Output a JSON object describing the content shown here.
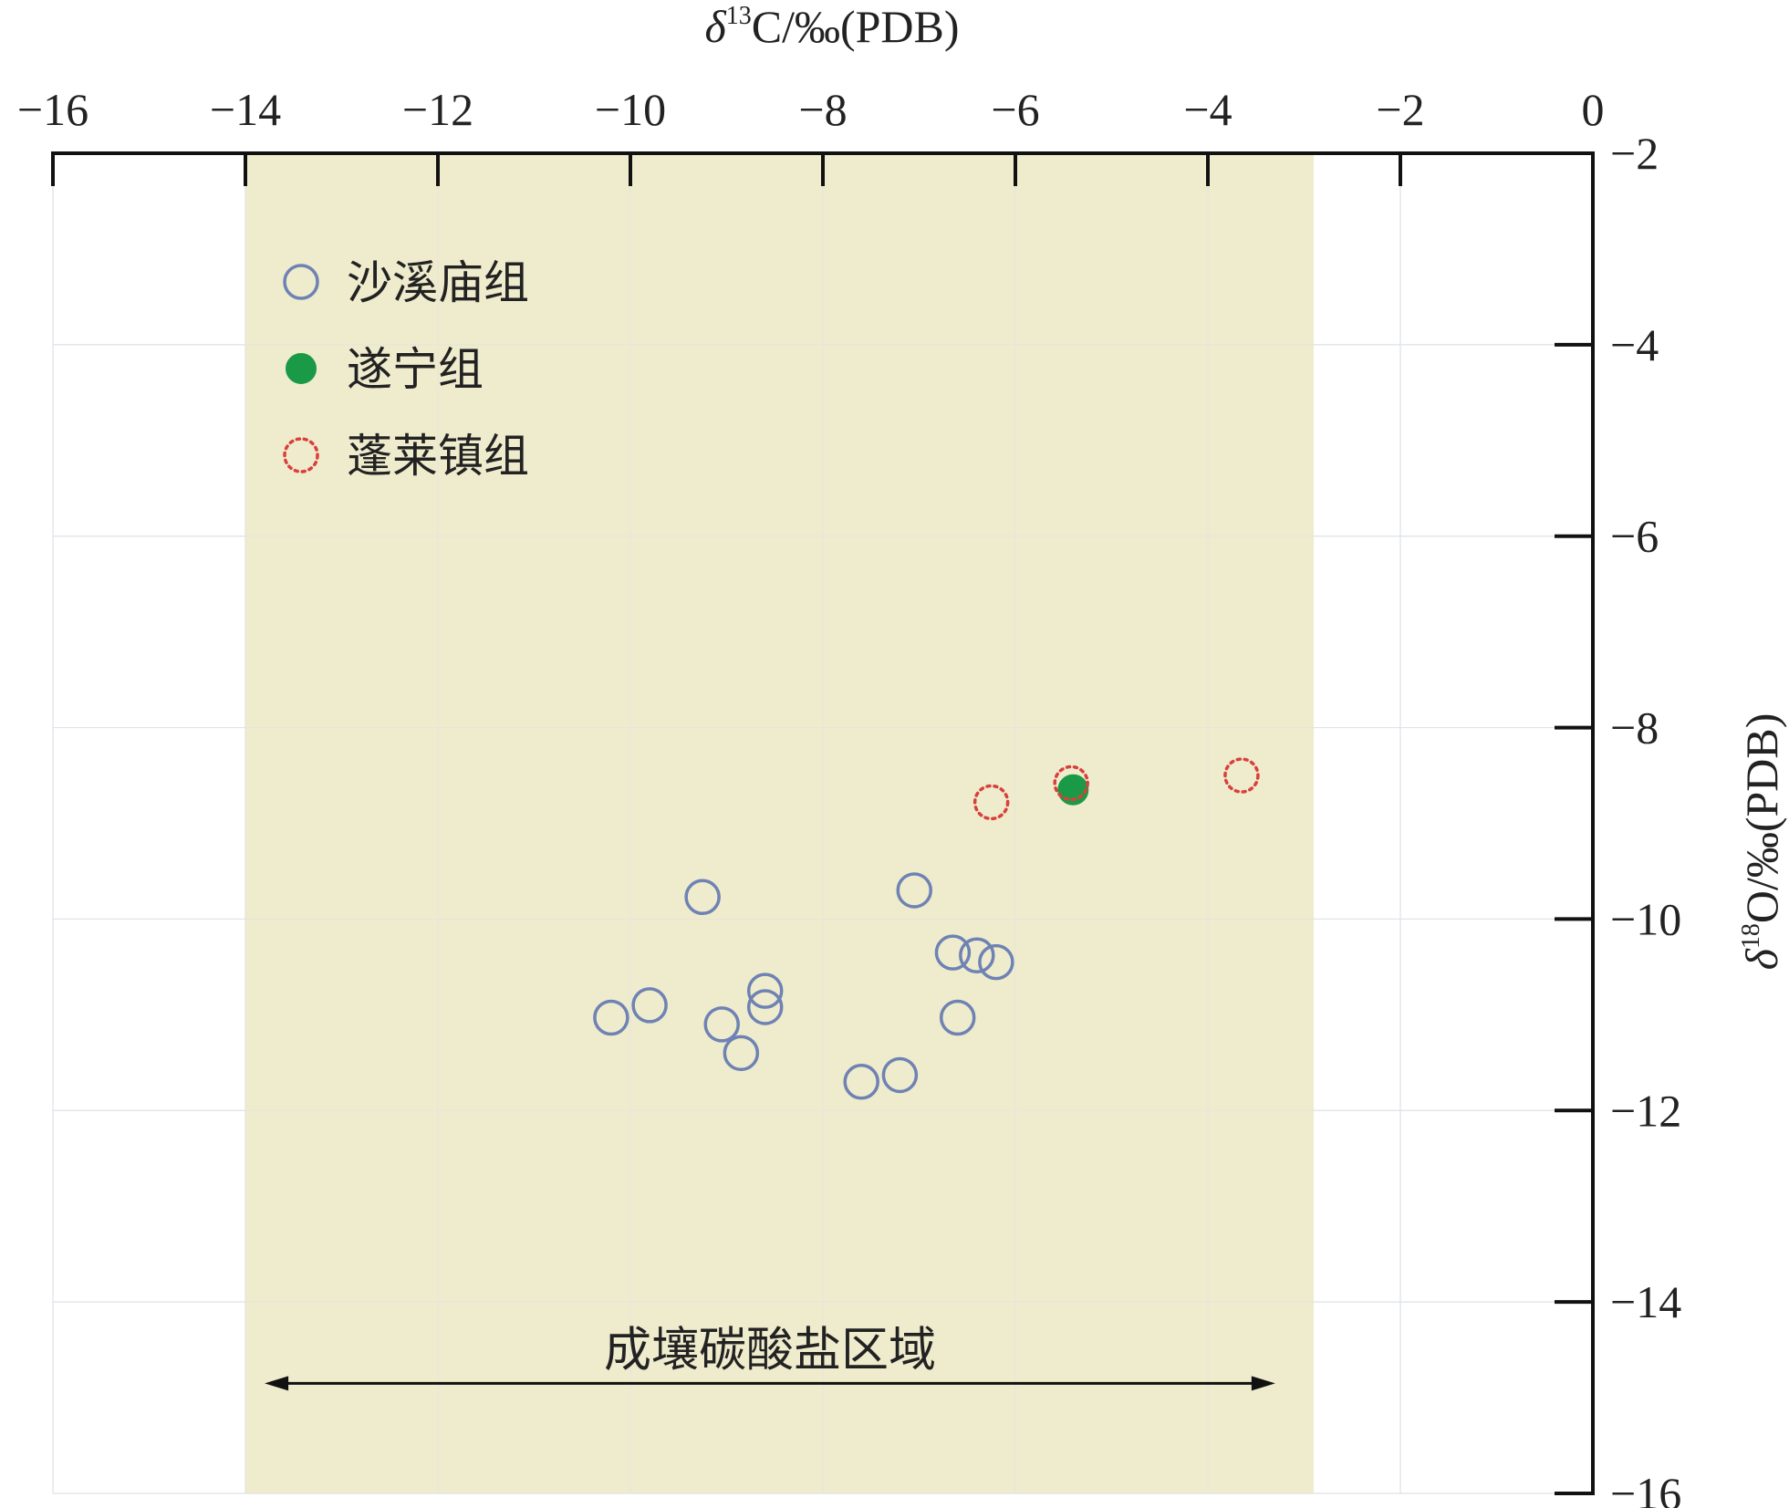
{
  "chart_data": {
    "type": "scatter",
    "xlabel": {
      "pre": "δ",
      "sup": "13",
      "post": "C/‰(PDB)"
    },
    "ylabel": {
      "pre": "δ",
      "sup": "18",
      "post": "O/‰(PDB)"
    },
    "xlim": [
      -16,
      0
    ],
    "ylim": [
      -16,
      -2
    ],
    "x_axis_position": "top",
    "y_axis_position": "right",
    "y_inverted": true,
    "x_ticks": [
      "−16",
      "−14",
      "−12",
      "−10",
      "−8",
      "−6",
      "−4",
      "−2",
      "0"
    ],
    "x_tick_values": [
      -16,
      -14,
      -12,
      -10,
      -8,
      -6,
      -4,
      -2,
      0
    ],
    "y_ticks": [
      "−2",
      "−4",
      "−6",
      "−8",
      "−10",
      "−12",
      "−14",
      "−16"
    ],
    "y_tick_values": [
      -2,
      -4,
      -6,
      -8,
      -10,
      -12,
      -14,
      -16
    ],
    "grid": true,
    "legend_position": "top-left",
    "shaded_region": {
      "x_range": [
        -14,
        -2.9
      ],
      "color": "#efebcd",
      "label": "成壤碳酸盐区域",
      "arrow_range": [
        -13.8,
        -3.3
      ],
      "label_y": -14.5,
      "arrow_y": -14.85
    },
    "series": [
      {
        "name": "沙溪庙组",
        "marker": "open-circle",
        "color": "#6e82b4",
        "points": [
          [
            -9.25,
            -9.77
          ],
          [
            -7.05,
            -9.7
          ],
          [
            -10.2,
            -11.03
          ],
          [
            -9.8,
            -10.9
          ],
          [
            -9.05,
            -11.1
          ],
          [
            -8.6,
            -10.75
          ],
          [
            -8.6,
            -10.92
          ],
          [
            -8.85,
            -11.4
          ],
          [
            -6.65,
            -10.35
          ],
          [
            -6.4,
            -10.38
          ],
          [
            -6.2,
            -10.45
          ],
          [
            -6.6,
            -11.03
          ],
          [
            -7.6,
            -11.7
          ],
          [
            -7.2,
            -11.63
          ]
        ]
      },
      {
        "name": "遂宁组",
        "marker": "filled-circle",
        "color": "#1a9a46",
        "points": [
          [
            -5.4,
            -8.65
          ]
        ]
      },
      {
        "name": "蓬莱镇组",
        "marker": "dotted-circle",
        "color": "#d8403c",
        "points": [
          [
            -6.25,
            -8.78
          ],
          [
            -5.42,
            -8.58
          ],
          [
            -3.65,
            -8.5
          ]
        ]
      }
    ]
  }
}
